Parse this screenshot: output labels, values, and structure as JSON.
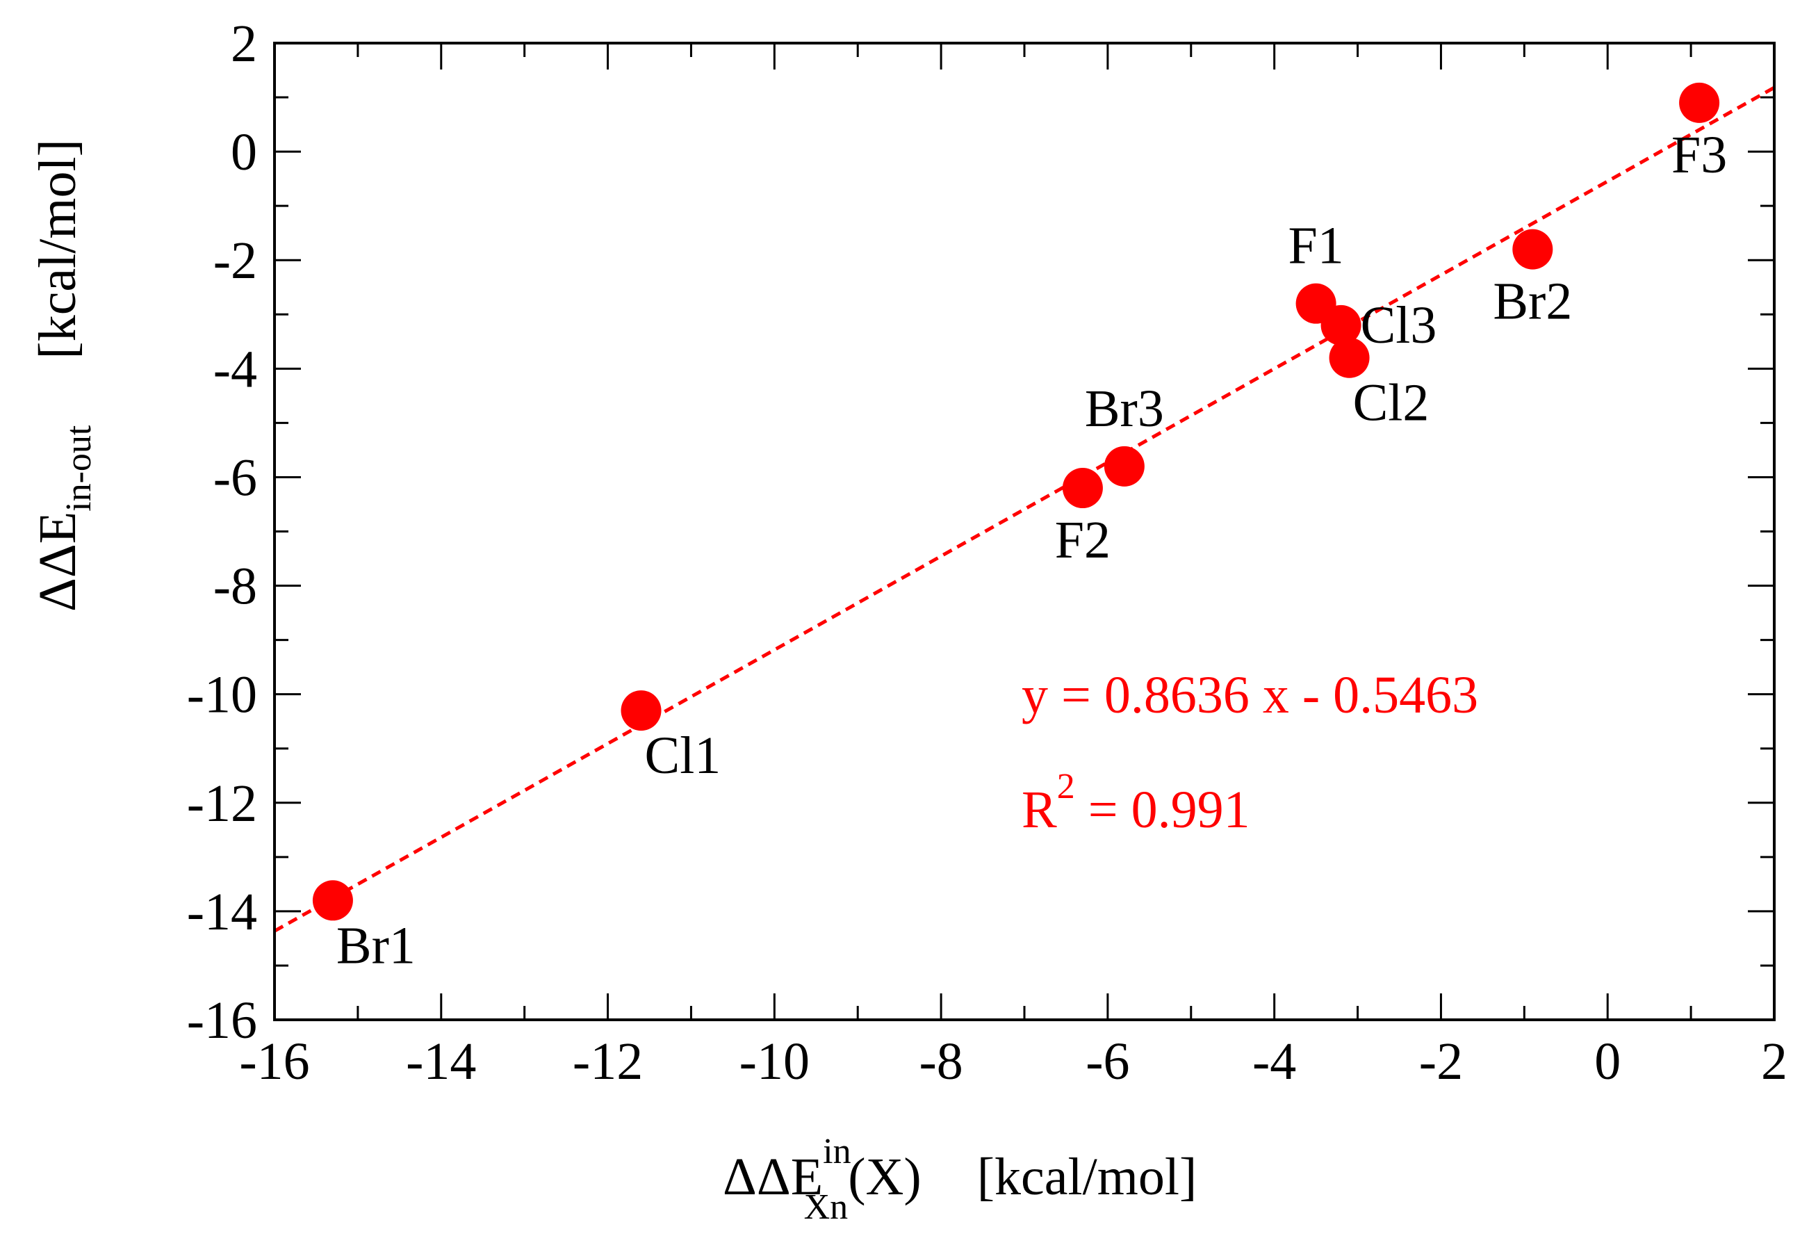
{
  "chart_data": {
    "type": "scatter",
    "xlim": [
      -16,
      2
    ],
    "ylim": [
      -16,
      2
    ],
    "xticks": [
      -16,
      -14,
      -12,
      -10,
      -8,
      -6,
      -4,
      -2,
      0,
      2
    ],
    "yticks": [
      -16,
      -14,
      -12,
      -10,
      -8,
      -6,
      -4,
      -2,
      0,
      2
    ],
    "xlabel": {
      "main": "ΔΔE",
      "sup": "in",
      "sub": "Xn",
      "rest": "(X)",
      "unit": "[kcal/mol]"
    },
    "ylabel": {
      "main": "ΔΔE",
      "sub": "in-out",
      "unit": "[kcal/mol]"
    },
    "points": [
      {
        "label": "Br1",
        "x": -15.3,
        "y": -13.8,
        "label_pos": "below-right"
      },
      {
        "label": "Cl1",
        "x": -11.6,
        "y": -10.3,
        "label_pos": "below-right"
      },
      {
        "label": "F2",
        "x": -6.3,
        "y": -6.2,
        "label_pos": "below"
      },
      {
        "label": "Br3",
        "x": -5.8,
        "y": -5.8,
        "label_pos": "above"
      },
      {
        "label": "F1",
        "x": -3.5,
        "y": -2.8,
        "label_pos": "above"
      },
      {
        "label": "Cl3",
        "x": -3.2,
        "y": -3.2,
        "label_pos": "right"
      },
      {
        "label": "Cl2",
        "x": -3.1,
        "y": -3.8,
        "label_pos": "below-right"
      },
      {
        "label": "Br2",
        "x": -0.9,
        "y": -1.8,
        "label_pos": "below"
      },
      {
        "label": "F3",
        "x": 1.1,
        "y": 0.9,
        "label_pos": "below"
      }
    ],
    "fit": {
      "slope": 0.8636,
      "intercept": -0.5463,
      "style": "dashed"
    },
    "annotations": {
      "equation": "y = 0.8636 x - 0.5463",
      "r2_prefix": "R",
      "r2_sup": "2",
      "r2_value": " = 0.991"
    },
    "colors": {
      "points": "#ff0000",
      "fit": "#ff0000",
      "annotation": "#ff0000",
      "axes": "#000000"
    },
    "legend": "none",
    "grid": false
  }
}
